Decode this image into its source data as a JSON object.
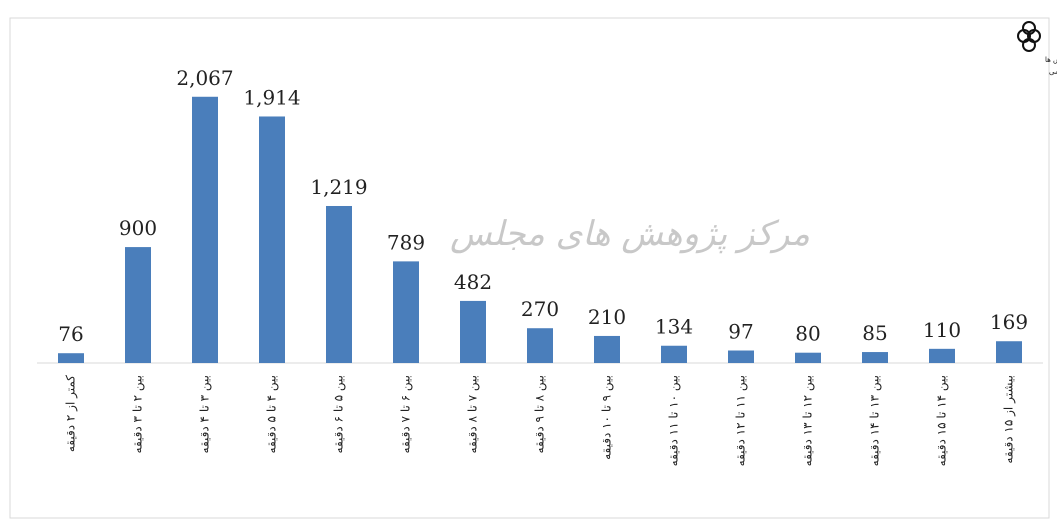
{
  "chart_data": {
    "type": "bar",
    "categories": [
      "کمتر از ۲ دقیقه",
      "بین ۲ تا ۳ دقیقه",
      "بین ۳ تا ۴ دقیقه",
      "بین ۴ تا ۵ دقیقه",
      "بین ۵ تا ۶ دقیقه",
      "بین ۶ تا ۷ دقیقه",
      "بین ۷ تا ۸ دقیقه",
      "بین ۸ تا ۹ دقیقه",
      "بین ۹ تا ۱۰ دقیقه",
      "بین ۱۰ تا ۱۱ دقیقه",
      "بین ۱۱ تا ۱۲ دقیقه",
      "بین ۱۲ تا ۱۳ دقیقه",
      "بین ۱۳ تا ۱۴ دقیقه",
      "بین ۱۴ تا ۱۵ دقیقه",
      "بیشتر از ۱۵ دقیقه"
    ],
    "values": [
      76,
      900,
      2067,
      1914,
      1219,
      789,
      482,
      270,
      210,
      134,
      97,
      80,
      85,
      110,
      169
    ],
    "value_labels": [
      "76",
      "900",
      "2,067",
      "1,914",
      "1,219",
      "789",
      "482",
      "270",
      "210",
      "134",
      "97",
      "80",
      "85",
      "110",
      "169"
    ],
    "color": "#4a7ebb",
    "ylim": [
      0,
      2500
    ],
    "watermark": "مرکز پژوهش های مجلس",
    "logo_lines": [
      "مرکز پژوهش ها",
      "مجلس شورای اسلامی"
    ]
  }
}
